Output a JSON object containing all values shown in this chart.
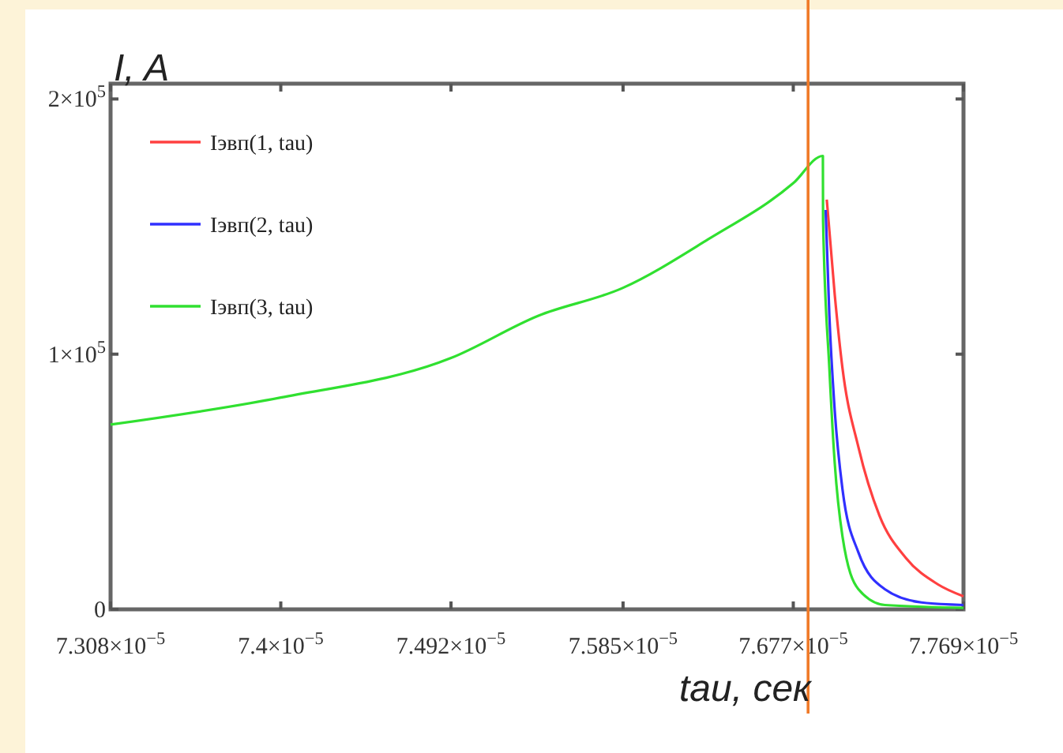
{
  "chart_data": {
    "type": "line",
    "xlabel": "tau, сек",
    "ylabel": "I, A",
    "xlim": [
      7.308e-05,
      7.769e-05
    ],
    "xticks": [
      {
        "value": 7.308e-05,
        "label": "7.308×10$^{−5}$"
      },
      {
        "value": 7.4e-05,
        "label": "7.4×10$^{−5}$"
      },
      {
        "value": 7.492e-05,
        "label": "7.492×10$^{−5}$"
      },
      {
        "value": 7.585e-05,
        "label": "7.585×10$^{−5}$"
      },
      {
        "value": 7.677e-05,
        "label": "7.677×10$^{−5}$"
      },
      {
        "value": 7.769e-05,
        "label": "7.769×10$^{−5}$"
      }
    ],
    "ylim": [
      0,
      206000
    ],
    "yticks": [
      0,
      {
        "value": 100000,
        "label": "1×10$^{5}$"
      },
      {
        "value": 200000,
        "label": "2×10$^{5}$"
      }
    ],
    "grid": false,
    "legend": "top left",
    "marker": "none",
    "line_style": "solid",
    "ref_lines": [
      {
        "axis": "x",
        "value": 7.685e-05,
        "label": null,
        "color": "#f07a28"
      }
    ],
    "series": [
      {
        "name": "Iэвп(1, tau)",
        "color": "#ff4040",
        "x": [
          7.6951e-05,
          7.6994e-05,
          7.7036e-05,
          7.7122e-05,
          7.7236e-05,
          7.7378e-05,
          7.7549e-05,
          7.769e-05
        ],
        "values": [
          160600,
          123400,
          94500,
          63600,
          36700,
          20200,
          9900,
          5100
        ]
      },
      {
        "name": "Iэвп(2, tau)",
        "color": "#3030ff",
        "x": [
          7.6945e-05,
          7.6965e-05,
          7.6994e-05,
          7.7036e-05,
          7.7122e-05,
          7.7265e-05,
          7.7463e-05,
          7.769e-05
        ],
        "values": [
          156500,
          115200,
          78000,
          47000,
          22300,
          7900,
          2700,
          1700
        ]
      },
      {
        "name": "Iэвп(3, tau)",
        "color": "#30e030",
        "x": [
          7.308e-05,
          7.4e-05,
          7.492e-05,
          7.539e-05,
          7.585e-05,
          7.631e-05,
          7.677e-05,
          7.693e-05,
          7.6931e-05,
          7.6965e-05,
          7.6994e-05,
          7.7036e-05,
          7.7122e-05,
          7.7265e-05,
          7.769e-05
        ],
        "values": [
          72400,
          83000,
          98500,
          115000,
          126000,
          145000,
          167000,
          177700,
          152300,
          94500,
          57400,
          28500,
          7900,
          1700,
          600
        ]
      }
    ]
  }
}
